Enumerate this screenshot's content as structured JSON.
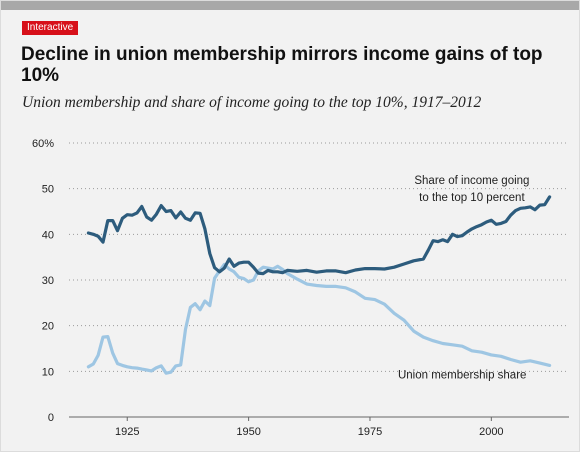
{
  "header": {
    "badge": "Interactive",
    "title": "Decline in union membership mirrors income gains of top 10%",
    "subtitle": "Union membership and share of income going to the top 10%, 1917–2012"
  },
  "colors": {
    "background": "#f2f2f2",
    "badge": "#d7101a",
    "top10_series": "#2d5c7d",
    "union_series": "#9ec6e3"
  },
  "chart_data": {
    "type": "line",
    "title": "",
    "xlabel": "",
    "ylabel": "",
    "xlim": [
      1913,
      2016
    ],
    "ylim": [
      0,
      60
    ],
    "x_ticks": [
      1925,
      1950,
      1975,
      2000
    ],
    "y_ticks": [
      0,
      10,
      20,
      30,
      40,
      50,
      60
    ],
    "y_tick_labels": [
      "0",
      "10",
      "20",
      "30",
      "40",
      "50",
      "60%"
    ],
    "grid": "horizontal dotted",
    "series": [
      {
        "name": "Share of income going to the top 10 percent",
        "label_lines": [
          "Share of income going",
          "to the top 10 percent"
        ],
        "color": "#2d5c7d",
        "x": [
          1917,
          1918,
          1919,
          1920,
          1921,
          1922,
          1923,
          1924,
          1925,
          1926,
          1927,
          1928,
          1929,
          1930,
          1931,
          1932,
          1933,
          1934,
          1935,
          1936,
          1937,
          1938,
          1939,
          1940,
          1941,
          1942,
          1943,
          1944,
          1945,
          1946,
          1947,
          1948,
          1949,
          1950,
          1951,
          1952,
          1953,
          1954,
          1955,
          1956,
          1957,
          1958,
          1959,
          1960,
          1962,
          1964,
          1966,
          1968,
          1970,
          1972,
          1974,
          1976,
          1978,
          1980,
          1982,
          1984,
          1986,
          1987,
          1988,
          1989,
          1990,
          1991,
          1992,
          1993,
          1994,
          1995,
          1996,
          1997,
          1998,
          1999,
          2000,
          2001,
          2002,
          2003,
          2004,
          2005,
          2006,
          2007,
          2008,
          2009,
          2010,
          2011,
          2012
        ],
        "values": [
          40.3,
          40.0,
          39.6,
          38.3,
          43.0,
          43.0,
          40.8,
          43.5,
          44.3,
          44.2,
          44.7,
          46.1,
          43.8,
          43.1,
          44.4,
          46.3,
          45.0,
          45.2,
          43.6,
          44.9,
          43.5,
          43.1,
          44.7,
          44.6,
          41.2,
          35.8,
          32.7,
          31.8,
          32.6,
          34.6,
          33.0,
          33.7,
          33.9,
          33.9,
          32.8,
          31.5,
          31.4,
          32.1,
          31.8,
          31.8,
          31.6,
          32.1,
          32.0,
          31.9,
          32.1,
          31.7,
          32.0,
          32.0,
          31.6,
          32.2,
          32.5,
          32.5,
          32.4,
          32.8,
          33.5,
          34.2,
          34.6,
          36.5,
          38.6,
          38.4,
          38.8,
          38.4,
          40.0,
          39.5,
          39.7,
          40.5,
          41.2,
          41.7,
          42.1,
          42.7,
          43.1,
          42.2,
          42.4,
          42.8,
          44.2,
          45.2,
          45.7,
          45.8,
          46.0,
          45.4,
          46.4,
          46.5,
          48.2
        ]
      },
      {
        "name": "Union membership share",
        "label_lines": [
          "Union membership share"
        ],
        "color": "#9ec6e3",
        "x": [
          1917,
          1918,
          1919,
          1920,
          1921,
          1922,
          1923,
          1924,
          1925,
          1926,
          1927,
          1928,
          1929,
          1930,
          1931,
          1932,
          1933,
          1934,
          1935,
          1936,
          1937,
          1938,
          1939,
          1940,
          1941,
          1942,
          1943,
          1944,
          1945,
          1946,
          1947,
          1948,
          1949,
          1950,
          1951,
          1952,
          1953,
          1954,
          1955,
          1956,
          1957,
          1958,
          1959,
          1960,
          1962,
          1964,
          1966,
          1968,
          1970,
          1972,
          1974,
          1976,
          1978,
          1980,
          1982,
          1984,
          1986,
          1988,
          1990,
          1992,
          1994,
          1996,
          1998,
          2000,
          2002,
          2004,
          2006,
          2008,
          2010,
          2012
        ],
        "values": [
          11.0,
          11.6,
          13.5,
          17.5,
          17.6,
          14.0,
          11.7,
          11.3,
          11.0,
          10.8,
          10.7,
          10.5,
          10.3,
          10.1,
          10.8,
          11.2,
          9.6,
          9.8,
          11.2,
          11.4,
          19.2,
          24.0,
          24.8,
          23.5,
          25.4,
          24.4,
          30.4,
          32.0,
          33.4,
          32.4,
          31.8,
          30.6,
          30.3,
          29.6,
          30.0,
          32.0,
          32.8,
          32.6,
          32.4,
          33.0,
          32.3,
          31.4,
          30.8,
          30.2,
          29.1,
          28.8,
          28.6,
          28.6,
          28.3,
          27.4,
          26.0,
          25.7,
          24.7,
          22.7,
          21.2,
          18.8,
          17.5,
          16.7,
          16.1,
          15.8,
          15.5,
          14.5,
          14.2,
          13.6,
          13.3,
          12.6,
          12.0,
          12.3,
          11.8,
          11.3
        ]
      }
    ],
    "annotations": [
      {
        "series": 0,
        "text_lines": [
          "Share of income going",
          "to the top 10 percent"
        ],
        "at_x": 1996,
        "at_y": 51
      },
      {
        "series": 1,
        "text_lines": [
          "Union membership share"
        ],
        "at_x": 1994,
        "at_y": 8.4
      }
    ]
  }
}
